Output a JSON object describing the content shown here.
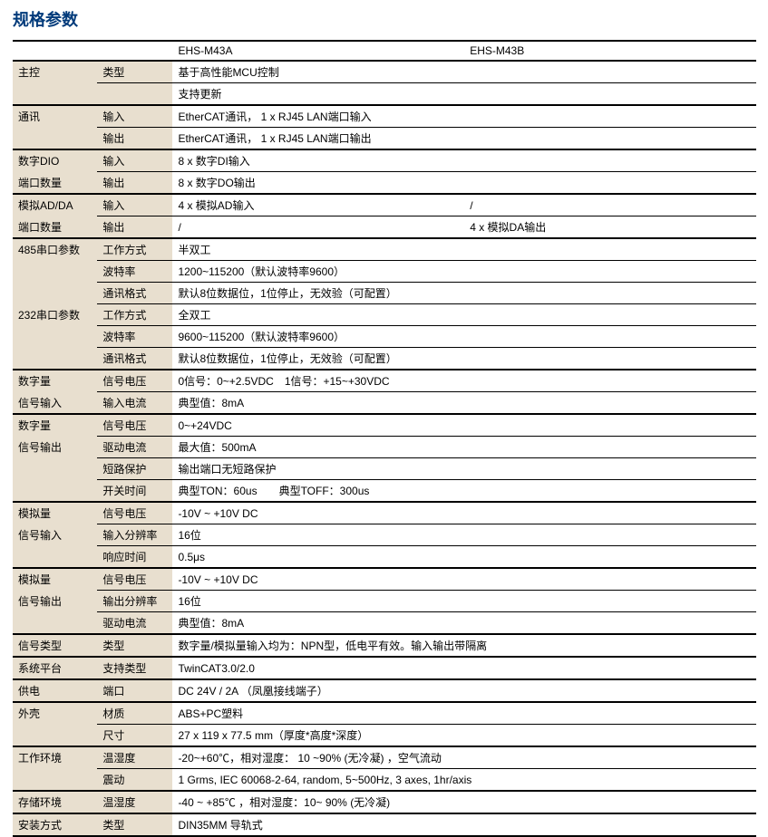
{
  "title": "规格参数",
  "header": {
    "c3": "EHS-M43A",
    "c4": "EHS-M43B"
  },
  "rows": [
    {
      "c1": "主控",
      "c2": "类型",
      "v": "基于高性能MCU控制",
      "span": 2,
      "groupStart": true
    },
    {
      "c1": "",
      "c2": "",
      "v": "支持更新",
      "span": 2,
      "sep": true
    },
    {
      "c1": "通讯",
      "c2": "输入",
      "v": "EtherCAT通讯， 1 x RJ45 LAN端口输入",
      "span": 2,
      "groupStart": true
    },
    {
      "c1": "",
      "c2": "输出",
      "v": "EtherCAT通讯， 1 x RJ45 LAN端口输出",
      "span": 2,
      "sep": true
    },
    {
      "c1": "数字DIO",
      "c2": "输入",
      "v": "8 x 数字DI输入",
      "span": 2,
      "groupStart": true
    },
    {
      "c1": "端口数量",
      "c2": "输出",
      "v": "8 x 数字DO输出",
      "span": 2,
      "sep": true
    },
    {
      "c1": "模拟AD/DA",
      "c2": "输入",
      "v3": "4 x 模拟AD输入",
      "v4": "/",
      "groupStart": true
    },
    {
      "c1": "端口数量",
      "c2": "输出",
      "v3": "/",
      "v4": "4 x 模拟DA输出",
      "sep": true
    },
    {
      "c1": "485串口参数",
      "c2": "工作方式",
      "v": "半双工",
      "span": 2,
      "groupStart": true
    },
    {
      "c1": "",
      "c2": "波特率",
      "v": "1200~115200（默认波特率9600）",
      "span": 2
    },
    {
      "c1": "",
      "c2": "通讯格式",
      "v": "默认8位数据位，1位停止，无效验（可配置）",
      "span": 2
    },
    {
      "c1": "232串口参数",
      "c2": "工作方式",
      "v": "全双工",
      "span": 2
    },
    {
      "c1": "",
      "c2": "波特率",
      "v": "9600~115200（默认波特率9600）",
      "span": 2
    },
    {
      "c1": "",
      "c2": "通讯格式",
      "v": "默认8位数据位，1位停止，无效验（可配置）",
      "span": 2,
      "sep": true
    },
    {
      "c1": "数字量",
      "c2": "信号电压",
      "v": "0信号：0~+2.5VDC　1信号：+15~+30VDC",
      "span": 2,
      "groupStart": true
    },
    {
      "c1": "信号输入",
      "c2": "输入电流",
      "v": "典型值：8mA",
      "span": 2,
      "sep": true
    },
    {
      "c1": "数字量",
      "c2": "信号电压",
      "v": "0~+24VDC",
      "span": 2,
      "groupStart": true
    },
    {
      "c1": "信号输出",
      "c2": "驱动电流",
      "v": "最大值：500mA",
      "span": 2
    },
    {
      "c1": "",
      "c2": "短路保护",
      "v": "输出端口无短路保护",
      "span": 2
    },
    {
      "c1": "",
      "c2": "开关时间",
      "v": "典型TON：60us　　典型TOFF：300us",
      "span": 2,
      "sep": true
    },
    {
      "c1": "模拟量",
      "c2": "信号电压",
      "v": "-10V ~ +10V DC",
      "span": 2,
      "groupStart": true
    },
    {
      "c1": "信号输入",
      "c2": "输入分辨率",
      "v": "16位",
      "span": 2
    },
    {
      "c1": "",
      "c2": "响应时间",
      "v": "0.5μs",
      "span": 2,
      "sep": true
    },
    {
      "c1": "模拟量",
      "c2": "信号电压",
      "v": "-10V ~ +10V DC",
      "span": 2,
      "groupStart": true
    },
    {
      "c1": "信号输出",
      "c2": "输出分辨率",
      "v": "16位",
      "span": 2
    },
    {
      "c1": "",
      "c2": "驱动电流",
      "v": "典型值：8mA",
      "span": 2,
      "sep": true
    },
    {
      "c1": "信号类型",
      "c2": "类型",
      "v": "数字量/模拟量输入均为：NPN型，低电平有效。输入输出带隔离",
      "span": 2,
      "sep": true,
      "groupStart": true
    },
    {
      "c1": "系统平台",
      "c2": "支持类型",
      "v": "TwinCAT3.0/2.0",
      "span": 2,
      "sep": true,
      "groupStart": true
    },
    {
      "c1": "供电",
      "c2": "端口",
      "v": "DC 24V / 2A （凤凰接线端子）",
      "span": 2,
      "sep": true,
      "groupStart": true
    },
    {
      "c1": "外壳",
      "c2": "材质",
      "v": "ABS+PC塑料",
      "span": 2,
      "groupStart": true
    },
    {
      "c1": "",
      "c2": "尺寸",
      "v": "27 x 119 x 77.5 mm（厚度*高度*深度）",
      "span": 2,
      "sep": true
    },
    {
      "c1": "工作环境",
      "c2": "温湿度",
      "v": "-20~+60℃，相对湿度： 10 ~90% (无冷凝) ，空气流动",
      "span": 2,
      "groupStart": true
    },
    {
      "c1": "",
      "c2": "震动",
      "v": "1 Grms, IEC 60068-2-64, random, 5~500Hz, 3 axes, 1hr/axis",
      "span": 2,
      "sep": true
    },
    {
      "c1": "存储环境",
      "c2": "温湿度",
      "v": "-40 ~ +85℃ ，相对湿度：10~ 90% (无冷凝)",
      "span": 2,
      "sep": true,
      "groupStart": true
    },
    {
      "c1": "安装方式",
      "c2": "类型",
      "v": "DIN35MM 导轨式",
      "span": 2,
      "sep": true,
      "groupStart": true
    }
  ]
}
